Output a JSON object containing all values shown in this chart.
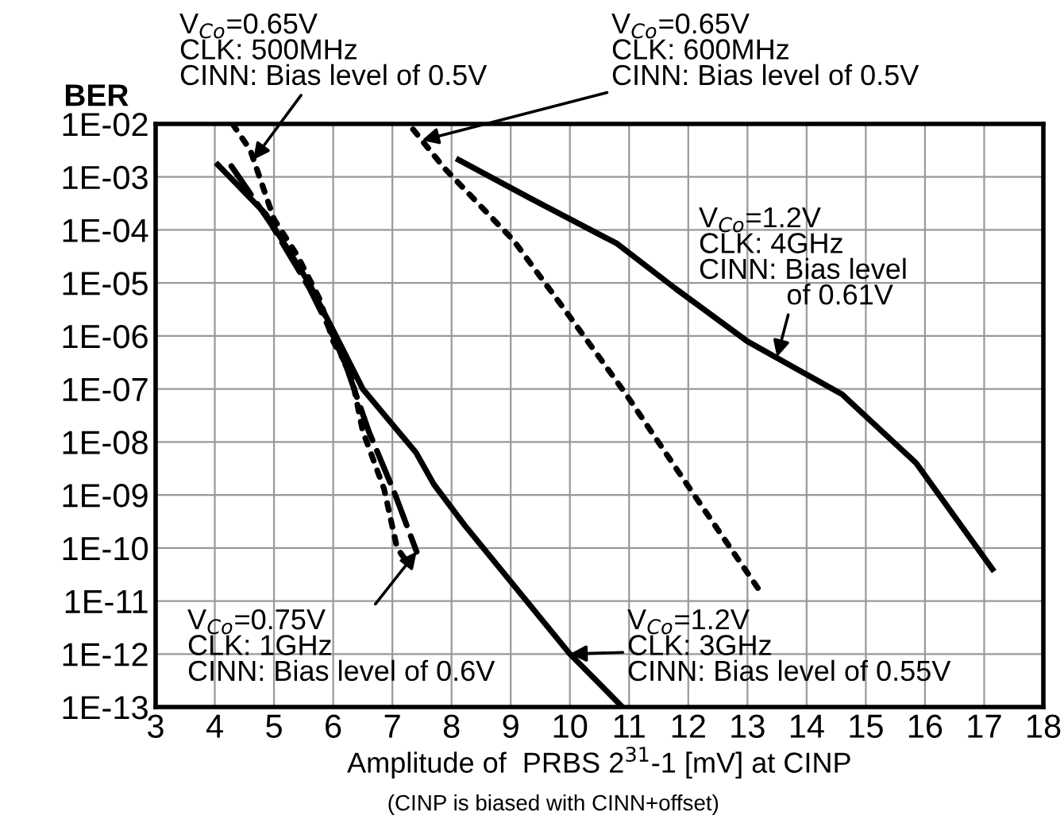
{
  "chart_data": {
    "type": "line",
    "ylabel": "BER",
    "xlabel": "Amplitude of  PRBS 2$^{31}$-1 [mV] at CINP",
    "log": "y",
    "grid": true,
    "xlim": [
      3,
      18
    ],
    "xticks": [
      3,
      4,
      5,
      6,
      7,
      8,
      9,
      10,
      11,
      12,
      13,
      14,
      15,
      16,
      17,
      18
    ],
    "ylim": [
      1e-13,
      0.01
    ],
    "yticks": [
      {
        "value": 1e-13,
        "label": "1E-13"
      },
      {
        "value": 1e-12,
        "label": "1E-12"
      },
      {
        "value": 1e-11,
        "label": "1E-11"
      },
      {
        "value": 1e-10,
        "label": "1E-10"
      },
      {
        "value": 1e-09,
        "label": "1E-09"
      },
      {
        "value": 1e-08,
        "label": "1E-08"
      },
      {
        "value": 1e-07,
        "label": "1E-07"
      },
      {
        "value": 1e-06,
        "label": "1E-06"
      },
      {
        "value": 1e-05,
        "label": "1E-05"
      },
      {
        "value": 0.0001,
        "label": "1E-04"
      },
      {
        "value": 0.001,
        "label": "1E-03"
      },
      {
        "value": 0.01,
        "label": "1E-02"
      }
    ],
    "series": [
      {
        "color": "#000000",
        "line_style": "dotted",
        "x": [
          4.3,
          4.6,
          5.0,
          5.4,
          5.77,
          6.0,
          6.3,
          6.5,
          6.86,
          7.08,
          7.27
        ],
        "values": [
          0.01,
          0.0032,
          0.00016,
          3.2e-05,
          5e-06,
          7.9e-07,
          2e-07,
          1.6e-08,
          1.3e-09,
          1e-10,
          5e-11
        ]
      },
      {
        "color": "#000000",
        "line_style": "dotted",
        "x": [
          7.35,
          7.87,
          9.05,
          10.04,
          10.95,
          12.03,
          13.2
        ],
        "values": [
          0.0079,
          0.0015,
          6.3e-05,
          2e-06,
          7.9e-08,
          1.3e-09,
          1.6e-11
        ]
      },
      {
        "color": "#000000",
        "line_style": "dashed",
        "x": [
          4.28,
          4.95,
          5.6,
          6.0,
          6.23,
          6.6,
          7.05,
          7.41
        ],
        "values": [
          0.0016,
          0.00013,
          7.9e-06,
          1e-06,
          2.5e-07,
          1.6e-08,
          1e-09,
          8.5e-11
        ]
      },
      {
        "color": "#000000",
        "line_style": "solid",
        "x": [
          4.05,
          4.86,
          5.59,
          6.14,
          6.5,
          7.4,
          7.7,
          8.22,
          10.0,
          10.85
        ],
        "values": [
          0.0017,
          0.0002,
          1e-05,
          6.3e-07,
          1e-07,
          6.3e-09,
          1.6e-09,
          2.7e-10,
          1e-12,
          1.1e-13
        ]
      },
      {
        "color": "#000000",
        "line_style": "solid",
        "x": [
          8.12,
          9.36,
          10.8,
          11.78,
          13.0,
          13.8,
          14.6,
          15.85,
          17.14
        ],
        "values": [
          0.0021,
          0.00038,
          5.5e-05,
          7.9e-06,
          7.9e-07,
          2.5e-07,
          7.9e-08,
          4e-09,
          4e-11
        ]
      }
    ],
    "annotations": [
      {
        "text": "V$_{Co}$=0.65V\nCLK: 500MHz\nCINN: Bias level of 0.5V",
        "x": 4.65,
        "y": 0.0021
      },
      {
        "text": "V$_{Co}$=0.65V\nCLK: 600MHz\nCINN: Bias level of 0.5V",
        "x": 7.5,
        "y": 0.0049
      },
      {
        "text": "V$_{Co}$=1.2V\nCLK: 4GHz\nCINN: Bias level\n           of 0.61V",
        "x": 13.5,
        "y": 4e-07
      },
      {
        "text": "V$_{Co}$=0.75V\nCLK: 1GHz\nCINN: Bias level of 0.6V",
        "x": 7.41,
        "y": 8.5e-11
      },
      {
        "text": "V$_{Co}$=1.2V\nCLK: 3GHz\nCINN: Bias level of 0.55V",
        "x": 10.0,
        "y": 1e-12
      },
      "(CINP is biased with CINN+offset)"
    ]
  }
}
